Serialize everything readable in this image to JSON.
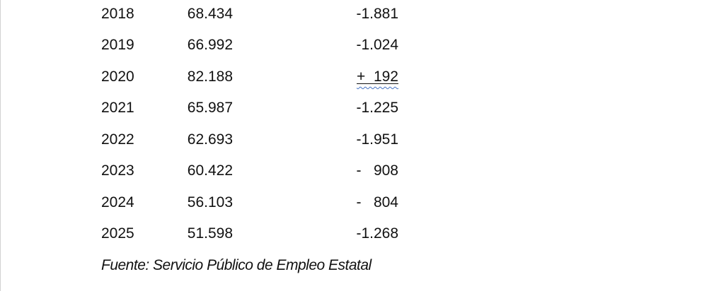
{
  "document": {
    "background": "#ffffff",
    "left_edge_color": "#d2d2d2",
    "text_color": "#111111"
  },
  "table": {
    "rows": [
      {
        "year": "2018",
        "total": "68.434",
        "difference": "-1.881",
        "grammar_flag": false
      },
      {
        "year": "2019",
        "total": "66.992",
        "difference": "-1.024",
        "grammar_flag": false
      },
      {
        "year": "2020",
        "total": "82.188",
        "difference": "+  192",
        "grammar_flag": true
      },
      {
        "year": "2021",
        "total": "65.987",
        "difference": "-1.225",
        "grammar_flag": false
      },
      {
        "year": "2022",
        "total": "62.693",
        "difference": "-1.951",
        "grammar_flag": false
      },
      {
        "year": "2023",
        "total": "60.422",
        "difference": "-   908",
        "grammar_flag": false
      },
      {
        "year": "2024",
        "total": "56.103",
        "difference": "-   804",
        "grammar_flag": false
      },
      {
        "year": "2025",
        "total": "51.598",
        "difference": "-1.268",
        "grammar_flag": false
      }
    ]
  },
  "source": {
    "text": "Fuente: Servicio Público de Empleo Estatal"
  },
  "annotations": {
    "grammar_squiggle_color": "#4472c4",
    "underline_color": "#111111"
  }
}
